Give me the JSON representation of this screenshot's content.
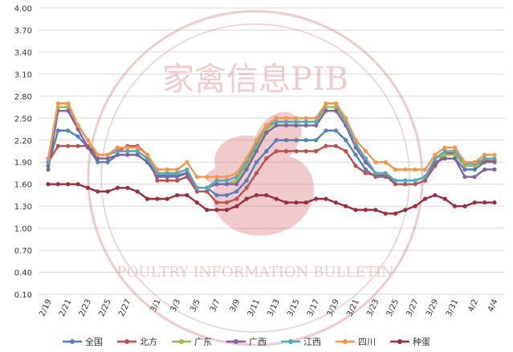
{
  "chart_data": {
    "type": "line",
    "x": [
      "2/19",
      "2/20",
      "2/21",
      "2/22",
      "2/23",
      "2/24",
      "2/25",
      "2/26",
      "2/27",
      "2/28",
      "2/29",
      "3/1",
      "3/2",
      "3/3",
      "3/4",
      "3/5",
      "3/6",
      "3/7",
      "3/8",
      "3/9",
      "3/10",
      "3/11",
      "3/12",
      "3/13",
      "3/14",
      "3/15",
      "3/16",
      "3/17",
      "3/18",
      "3/19",
      "3/20",
      "3/21",
      "3/22",
      "3/23",
      "3/24",
      "3/25",
      "3/26",
      "3/27",
      "3/28",
      "3/29",
      "3/30",
      "3/31",
      "4/1",
      "4/2",
      "4/3",
      "4/4"
    ],
    "x_tick_labels": [
      "2/19",
      "2/21",
      "2/23",
      "2/25",
      "2/27",
      "3/1",
      "3/3",
      "3/5",
      "3/7",
      "3/9",
      "3/11",
      "3/13",
      "3/15",
      "3/17",
      "3/19",
      "3/21",
      "3/23",
      "3/25",
      "3/27",
      "3/29",
      "3/31",
      "4/2",
      "4/4"
    ],
    "y_ticks": [
      "0.10",
      "0.40",
      "0.70",
      "1.00",
      "1.30",
      "1.60",
      "1.90",
      "2.20",
      "2.50",
      "2.80",
      "3.10",
      "3.40",
      "3.70",
      "4.00"
    ],
    "ylim": [
      0.1,
      4.0
    ],
    "grid": true,
    "legend_position": "bottom",
    "series": [
      {
        "name": "全国",
        "color": "#4F81BD",
        "values": [
          1.85,
          2.33,
          2.33,
          2.25,
          2.1,
          1.9,
          1.9,
          2.0,
          2.0,
          2.0,
          1.9,
          1.7,
          1.7,
          1.7,
          1.75,
          1.55,
          1.55,
          1.45,
          1.45,
          1.5,
          1.65,
          1.9,
          2.05,
          2.2,
          2.2,
          2.2,
          2.2,
          2.2,
          2.33,
          2.33,
          2.2,
          2.0,
          1.8,
          1.7,
          1.7,
          1.65,
          1.65,
          1.65,
          1.7,
          1.9,
          1.95,
          1.95,
          1.8,
          1.8,
          1.9,
          1.9
        ]
      },
      {
        "name": "北方",
        "color": "#C0504D",
        "values": [
          1.9,
          2.12,
          2.12,
          2.12,
          2.12,
          2.0,
          2.0,
          2.05,
          2.12,
          2.12,
          2.0,
          1.65,
          1.65,
          1.65,
          1.7,
          1.5,
          1.5,
          1.35,
          1.35,
          1.4,
          1.55,
          1.75,
          1.95,
          2.05,
          2.05,
          2.05,
          2.05,
          2.05,
          2.12,
          2.12,
          2.05,
          1.85,
          1.75,
          1.72,
          1.72,
          1.6,
          1.6,
          1.6,
          1.65,
          1.85,
          2.02,
          2.02,
          1.85,
          1.85,
          1.92,
          1.92
        ]
      },
      {
        "name": "广东",
        "color": "#9BBB59",
        "values": [
          1.9,
          2.65,
          2.65,
          2.4,
          2.2,
          2.0,
          2.0,
          2.05,
          2.05,
          2.05,
          1.95,
          1.75,
          1.75,
          1.75,
          1.8,
          1.55,
          1.55,
          1.6,
          1.6,
          1.65,
          1.85,
          2.1,
          2.35,
          2.45,
          2.45,
          2.45,
          2.45,
          2.45,
          2.65,
          2.65,
          2.45,
          2.15,
          1.95,
          1.75,
          1.75,
          1.65,
          1.65,
          1.65,
          1.7,
          1.95,
          2.0,
          2.0,
          1.85,
          1.85,
          1.95,
          1.95
        ]
      },
      {
        "name": "广西",
        "color": "#8064A2",
        "values": [
          1.8,
          2.6,
          2.6,
          2.35,
          2.1,
          1.95,
          1.95,
          2.0,
          2.0,
          2.0,
          1.9,
          1.72,
          1.72,
          1.72,
          1.75,
          1.55,
          1.55,
          1.6,
          1.6,
          1.6,
          1.8,
          2.05,
          2.3,
          2.4,
          2.4,
          2.4,
          2.4,
          2.4,
          2.6,
          2.6,
          2.4,
          2.1,
          1.9,
          1.75,
          1.75,
          1.65,
          1.65,
          1.65,
          1.7,
          1.9,
          1.95,
          1.95,
          1.7,
          1.7,
          1.8,
          1.8
        ]
      },
      {
        "name": "江西",
        "color": "#4BACC6",
        "values": [
          1.9,
          2.7,
          2.7,
          2.4,
          2.2,
          2.0,
          2.0,
          2.05,
          2.05,
          2.05,
          1.95,
          1.75,
          1.75,
          1.75,
          1.8,
          1.55,
          1.55,
          1.65,
          1.65,
          1.7,
          1.9,
          2.15,
          2.4,
          2.45,
          2.45,
          2.45,
          2.45,
          2.45,
          2.7,
          2.7,
          2.45,
          2.15,
          1.95,
          1.75,
          1.75,
          1.65,
          1.65,
          1.65,
          1.7,
          1.95,
          2.05,
          2.05,
          1.88,
          1.88,
          1.95,
          1.95
        ]
      },
      {
        "name": "四川",
        "color": "#F79646",
        "values": [
          1.95,
          2.7,
          2.7,
          2.4,
          2.2,
          2.0,
          2.0,
          2.1,
          2.1,
          2.1,
          2.0,
          1.8,
          1.8,
          1.8,
          1.9,
          1.7,
          1.7,
          1.7,
          1.7,
          1.75,
          1.95,
          2.2,
          2.4,
          2.5,
          2.5,
          2.5,
          2.5,
          2.5,
          2.7,
          2.7,
          2.5,
          2.2,
          2.05,
          1.9,
          1.9,
          1.8,
          1.8,
          1.8,
          1.8,
          2.0,
          2.1,
          2.1,
          1.9,
          1.9,
          2.0,
          2.0
        ]
      },
      {
        "name": "种蛋",
        "color": "#A02B3C",
        "values": [
          1.6,
          1.6,
          1.6,
          1.6,
          1.55,
          1.5,
          1.5,
          1.55,
          1.55,
          1.5,
          1.4,
          1.4,
          1.4,
          1.45,
          1.45,
          1.35,
          1.25,
          1.25,
          1.25,
          1.3,
          1.4,
          1.45,
          1.45,
          1.4,
          1.35,
          1.35,
          1.35,
          1.4,
          1.4,
          1.35,
          1.3,
          1.25,
          1.25,
          1.25,
          1.2,
          1.2,
          1.25,
          1.3,
          1.4,
          1.45,
          1.4,
          1.3,
          1.3,
          1.35,
          1.35,
          1.35
        ]
      }
    ]
  },
  "watermark": {
    "title": "家禽信息PIB",
    "subtitle": "POULTRY INFORMATION BULLETIN"
  }
}
